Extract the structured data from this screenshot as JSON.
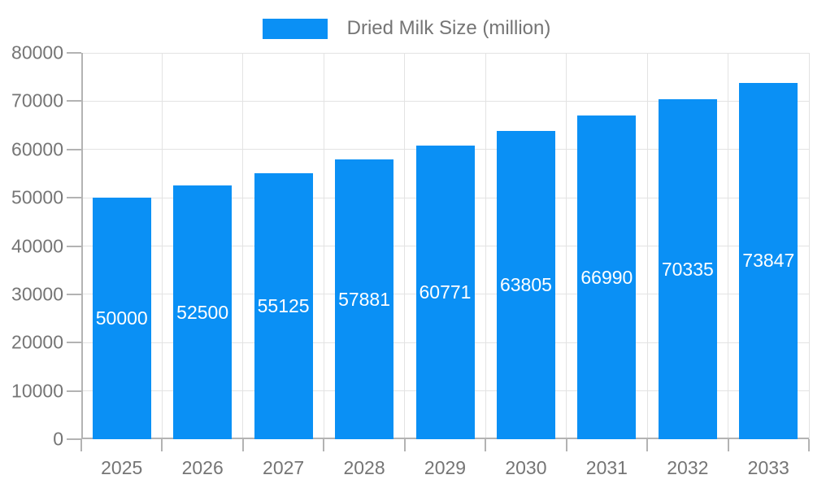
{
  "legend": {
    "label": "Dried Milk Size (million)"
  },
  "chart_data": {
    "type": "bar",
    "title": "Dried Milk Size (million)",
    "series_name": "Dried Milk Size (million)",
    "categories": [
      "2025",
      "2026",
      "2027",
      "2028",
      "2029",
      "2030",
      "2031",
      "2032",
      "2033"
    ],
    "values": [
      50000,
      52500,
      55125,
      57881,
      60771,
      63805,
      66990,
      70335,
      73847
    ],
    "value_labels": [
      "50000",
      "52500",
      "55125",
      "57881",
      "60771",
      "63805",
      "66990",
      "70335",
      "73847"
    ],
    "xlabel": "",
    "ylabel": "",
    "ylim": [
      0,
      80000
    ],
    "ytick_step": 10000,
    "ytick_labels": [
      "0",
      "10000",
      "20000",
      "30000",
      "40000",
      "50000",
      "60000",
      "70000",
      "80000"
    ],
    "grid": true,
    "legend_position": "top-center",
    "value_label_position": "center-of-bar"
  },
  "colors": {
    "bar": "#0a90f5",
    "grid": "#e3e3e3",
    "axis": "#b3b3b3",
    "tick_text": "#757575",
    "legend_text": "#757575",
    "value_label": "#ffffff",
    "background": "#ffffff"
  }
}
